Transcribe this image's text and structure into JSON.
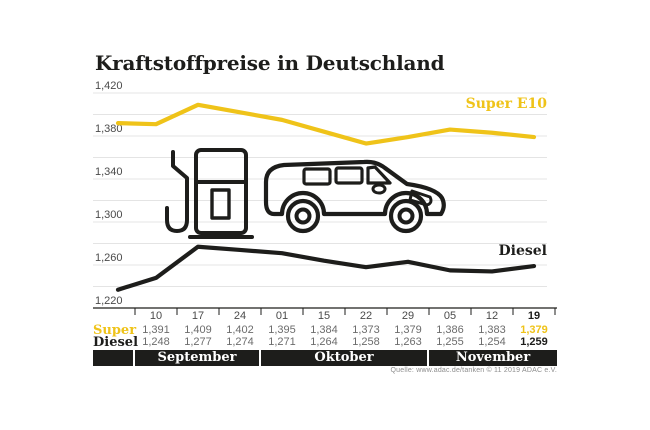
{
  "title": "Kraftstoffpreise in Deutschland",
  "source": "Quelle: www.adac.de/tanken    ©  11 2019    ADAC e.V.",
  "colors": {
    "super": "#EFC319",
    "diesel": "#1d1d1b",
    "grid": "#e4e4e4",
    "axis": "#1d1d1b",
    "tick_text": "#4a4a4a",
    "value_text": "#6c6c6c",
    "month_bar": "#1d1d1b",
    "source_text": "#8c8c8c"
  },
  "chart_data": {
    "type": "line",
    "title": "Kraftstoffpreise in Deutschland",
    "x_tick_labels": [
      "10",
      "17",
      "24",
      "01",
      "15",
      "22",
      "29",
      "05",
      "12",
      "19"
    ],
    "month_groups": [
      {
        "label": "September",
        "cols": 3
      },
      {
        "label": "Oktober",
        "cols": 4
      },
      {
        "label": "November",
        "cols": 3
      }
    ],
    "ylim": [
      1220,
      1420
    ],
    "y_grid_step": 20,
    "y_axis_labels": [
      {
        "value": 1420,
        "label": "1,420"
      },
      {
        "value": 1380,
        "label": "1,380"
      },
      {
        "value": 1340,
        "label": "1,340"
      },
      {
        "value": 1300,
        "label": "1,300"
      },
      {
        "value": 1260,
        "label": "1,260"
      },
      {
        "value": 1220,
        "label": "1,220"
      }
    ],
    "grid": true,
    "legend_position": "end-of-line-labels",
    "series": [
      {
        "name": "Super E10",
        "color_key": "super",
        "lead_in": 1392,
        "values": [
          1391,
          1409,
          1402,
          1395,
          1384,
          1373,
          1379,
          1386,
          1383,
          1379
        ]
      },
      {
        "name": "Diesel",
        "color_key": "diesel",
        "lead_in": 1237,
        "values": [
          1248,
          1277,
          1274,
          1271,
          1264,
          1258,
          1263,
          1255,
          1254,
          1259
        ]
      }
    ]
  },
  "table": {
    "rows": [
      {
        "label": "Super",
        "style": "super",
        "values": [
          "1,391",
          "1,409",
          "1,402",
          "1,395",
          "1,384",
          "1,373",
          "1,379",
          "1,386",
          "1,383",
          "1,379"
        ]
      },
      {
        "label": "Diesel",
        "style": "diesel",
        "values": [
          "1,248",
          "1,277",
          "1,274",
          "1,271",
          "1,264",
          "1,258",
          "1,263",
          "1,255",
          "1,254",
          "1,259"
        ]
      }
    ]
  }
}
